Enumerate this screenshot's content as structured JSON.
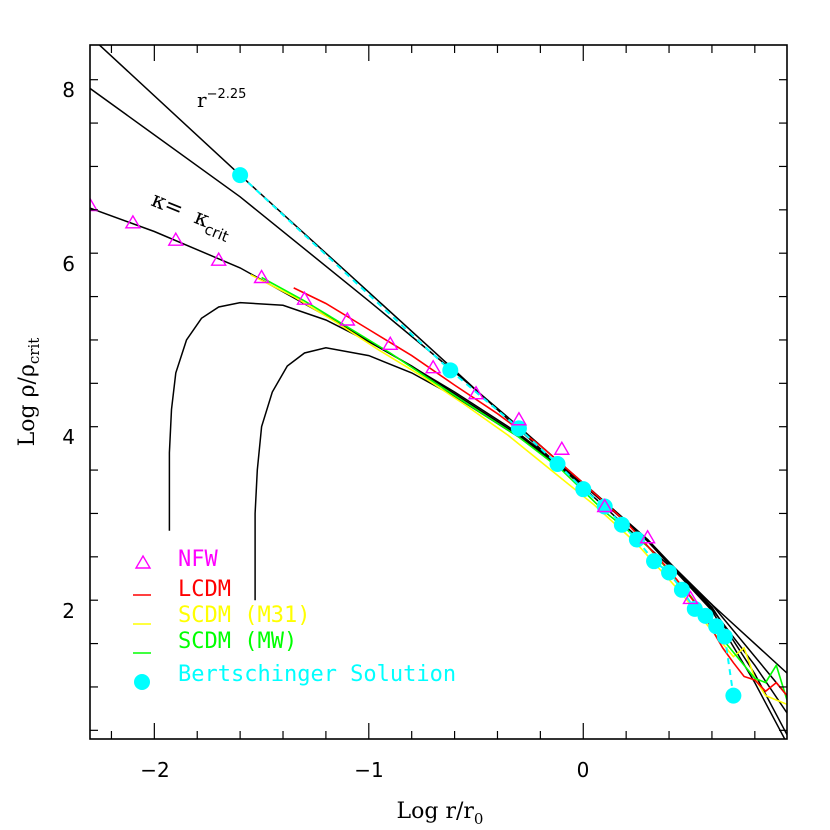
{
  "chart_data": {
    "type": "line",
    "xlabel_main": "Log r/r",
    "xlabel_sub": "0",
    "ylabel_main": "Log ρ/ρ",
    "ylabel_sub": "crit",
    "xlim": [
      -2.3,
      0.95
    ],
    "ylim": [
      0.5,
      8.5
    ],
    "x_ticks": [
      -2,
      -1,
      0
    ],
    "x_tick_labels": [
      "−2",
      "−1",
      "0"
    ],
    "y_ticks": [
      2,
      4,
      6,
      8
    ],
    "y_tick_labels": [
      "2",
      "4",
      "6",
      "8"
    ],
    "annotations": {
      "slope_base": "r",
      "slope_exp": "−2.25",
      "kappa_left": "κ=",
      "kappa_right": "κ",
      "kappa_sub": "crit"
    },
    "legend": [
      {
        "label": "NFW",
        "color": "#ff00ff",
        "marker": "triangle"
      },
      {
        "label": "LCDM",
        "color": "#ff0000",
        "marker": "line"
      },
      {
        "label": "SCDM (M31)",
        "color": "#ffff00",
        "marker": "line"
      },
      {
        "label": "SCDM (MW)",
        "color": "#00ff00",
        "marker": "line"
      },
      {
        "label": "Bertschinger Solution",
        "color": "#00ffff",
        "marker": "circle"
      }
    ],
    "black_curves": [
      {
        "x": [
          -2.3,
          -1.6,
          -1.0,
          -0.6,
          -0.3,
          0.0,
          0.3,
          0.6,
          0.95
        ],
        "y": [
          8.6,
          7.0,
          5.65,
          4.75,
          4.07,
          3.4,
          2.72,
          2.05,
          1.26
        ]
      },
      {
        "x": [
          -2.3,
          -1.6,
          -1.0,
          -0.6,
          -0.3,
          0.0,
          0.3,
          0.6,
          0.95
        ],
        "y": [
          8.0,
          6.75,
          5.55,
          4.73,
          4.1,
          3.45,
          2.78,
          2.05,
          1.0
        ]
      },
      {
        "x": [
          -2.3,
          -2.0,
          -1.6,
          -1.2,
          -1.0,
          -0.6,
          -0.3,
          0.0,
          0.3,
          0.6,
          0.8,
          0.95
        ],
        "y": [
          6.62,
          6.35,
          5.93,
          5.38,
          5.09,
          4.5,
          4.02,
          3.45,
          2.8,
          2.0,
          1.35,
          0.8
        ]
      },
      {
        "x": [
          -1.93,
          -1.93,
          -1.92,
          -1.9,
          -1.85,
          -1.78,
          -1.7,
          -1.6,
          -1.4,
          -1.2,
          -1.0,
          -0.8,
          -0.6,
          -0.3,
          0.0,
          0.3,
          0.6,
          0.8,
          0.95
        ],
        "y": [
          2.9,
          3.8,
          4.3,
          4.72,
          5.1,
          5.35,
          5.48,
          5.53,
          5.5,
          5.33,
          5.08,
          4.8,
          4.48,
          4.0,
          3.45,
          2.8,
          2.02,
          1.25,
          0.55
        ]
      },
      {
        "x": [
          -1.53,
          -1.53,
          -1.52,
          -1.5,
          -1.45,
          -1.38,
          -1.3,
          -1.2,
          -1.0,
          -0.8,
          -0.6,
          -0.3,
          0.0,
          0.3,
          0.6,
          0.8,
          0.95
        ],
        "y": [
          2.1,
          3.1,
          3.6,
          4.1,
          4.5,
          4.8,
          4.95,
          5.01,
          4.92,
          4.72,
          4.45,
          3.98,
          3.43,
          2.78,
          1.98,
          1.15,
          0.45
        ]
      }
    ],
    "series": [
      {
        "name": "NFW",
        "color": "#ff00ff",
        "marker": "triangle",
        "x": [
          -2.3,
          -2.1,
          -1.9,
          -1.7,
          -1.5,
          -1.3,
          -1.1,
          -0.9,
          -0.7,
          -0.5,
          -0.3,
          -0.1,
          0.1,
          0.3,
          0.5
        ],
        "y": [
          6.65,
          6.45,
          6.25,
          6.02,
          5.82,
          5.57,
          5.33,
          5.05,
          4.78,
          4.48,
          4.18,
          3.84,
          3.18,
          2.82,
          2.12
        ]
      },
      {
        "name": "LCDM",
        "color": "#ff0000",
        "marker": "line",
        "x": [
          -1.35,
          -1.2,
          -1.0,
          -0.8,
          -0.6,
          -0.4,
          -0.2,
          0.0,
          0.2,
          0.4,
          0.55,
          0.65,
          0.7,
          0.75,
          0.8,
          0.85,
          0.9,
          0.95
        ],
        "y": [
          5.7,
          5.52,
          5.22,
          4.92,
          4.58,
          4.25,
          3.88,
          3.45,
          3.0,
          2.45,
          1.98,
          1.55,
          1.38,
          1.22,
          1.18,
          1.05,
          1.15,
          1.0
        ]
      },
      {
        "name": "SCDM (M31)",
        "color": "#ffff00",
        "marker": "line",
        "x": [
          -1.55,
          -1.35,
          -1.15,
          -0.95,
          -0.75,
          -0.55,
          -0.35,
          -0.15,
          0.05,
          0.25,
          0.45,
          0.6,
          0.7,
          0.75,
          0.8,
          0.85,
          0.9,
          0.95
        ],
        "y": [
          5.85,
          5.6,
          5.3,
          4.98,
          4.68,
          4.35,
          4.0,
          3.6,
          3.2,
          2.75,
          2.2,
          1.75,
          1.45,
          1.55,
          1.2,
          1.0,
          0.95,
          0.9
        ]
      },
      {
        "name": "SCDM (MW)",
        "color": "#00ff00",
        "marker": "line",
        "x": [
          -1.5,
          -1.3,
          -1.1,
          -0.9,
          -0.7,
          -0.5,
          -0.3,
          -0.1,
          0.1,
          0.3,
          0.5,
          0.6,
          0.7,
          0.75,
          0.8,
          0.85,
          0.9,
          0.95
        ],
        "y": [
          5.82,
          5.55,
          5.25,
          4.95,
          4.62,
          4.3,
          3.98,
          3.6,
          3.12,
          2.72,
          2.15,
          1.8,
          1.5,
          1.35,
          1.2,
          1.15,
          1.35,
          0.95
        ]
      },
      {
        "name": "Bertschinger Solution",
        "color": "#00ffff",
        "marker": "circle",
        "x": [
          -1.6,
          -0.62,
          -0.3,
          -0.12,
          0.0,
          0.1,
          0.18,
          0.25,
          0.33,
          0.4,
          0.46,
          0.52,
          0.57,
          0.62,
          0.66,
          0.7
        ],
        "y": [
          7.0,
          4.75,
          4.08,
          3.67,
          3.38,
          3.18,
          2.97,
          2.8,
          2.55,
          2.42,
          2.22,
          2.0,
          1.92,
          1.8,
          1.68,
          1.0
        ]
      }
    ]
  }
}
